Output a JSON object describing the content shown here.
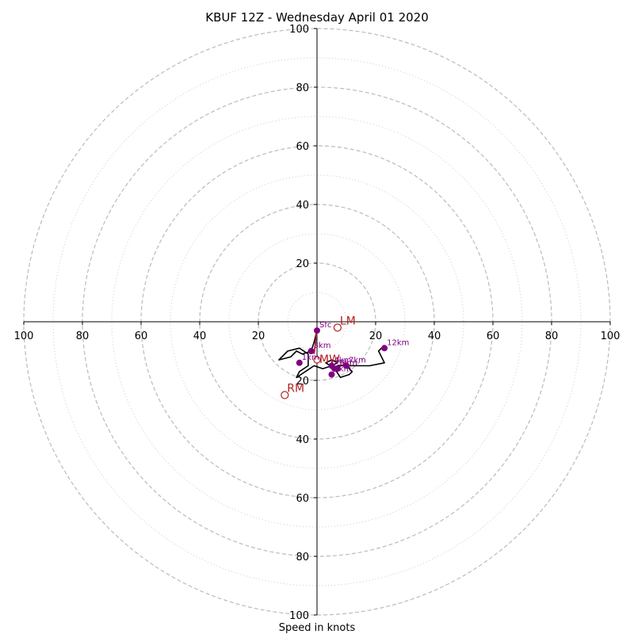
{
  "chart_data": {
    "type": "hodograph",
    "title": "KBUF 12Z - Wednesday April 01 2020",
    "xlabel": "Speed in knots",
    "range": [
      -100,
      100
    ],
    "major_rings": [
      20,
      40,
      60,
      80,
      100
    ],
    "minor_rings": [
      10,
      30,
      50,
      70,
      90
    ],
    "x_ticks": [
      {
        "v": -100,
        "label": "100"
      },
      {
        "v": -80,
        "label": "80"
      },
      {
        "v": -60,
        "label": "60"
      },
      {
        "v": -40,
        "label": "40"
      },
      {
        "v": -20,
        "label": "20"
      },
      {
        "v": 20,
        "label": "20"
      },
      {
        "v": 40,
        "label": "40"
      },
      {
        "v": 60,
        "label": "60"
      },
      {
        "v": 80,
        "label": "80"
      },
      {
        "v": 100,
        "label": "100"
      }
    ],
    "y_ticks": [
      {
        "v": 100,
        "label": "100"
      },
      {
        "v": 80,
        "label": "80"
      },
      {
        "v": 60,
        "label": "60"
      },
      {
        "v": 40,
        "label": "40"
      },
      {
        "v": 20,
        "label": "20"
      },
      {
        "v": -20,
        "label": "20"
      },
      {
        "v": -40,
        "label": "40"
      },
      {
        "v": -60,
        "label": "60"
      },
      {
        "v": -80,
        "label": "80"
      },
      {
        "v": -100,
        "label": "100"
      }
    ],
    "trace": [
      [
        0,
        -3
      ],
      [
        -1,
        -7
      ],
      [
        -2,
        -10
      ],
      [
        -5,
        -11
      ],
      [
        -7,
        -10
      ],
      [
        -9,
        -12
      ],
      [
        -13,
        -13
      ],
      [
        -10,
        -10
      ],
      [
        -6,
        -9
      ],
      [
        -3,
        -11
      ],
      [
        -3,
        -15
      ],
      [
        -6,
        -17
      ],
      [
        -7,
        -19
      ],
      [
        -4,
        -17
      ],
      [
        -1,
        -15
      ],
      [
        2,
        -16
      ],
      [
        5,
        -15
      ],
      [
        7,
        -14
      ],
      [
        5,
        -13
      ],
      [
        3,
        -14
      ],
      [
        6,
        -16
      ],
      [
        8,
        -19
      ],
      [
        11,
        -18
      ],
      [
        12,
        -17
      ],
      [
        10,
        -15
      ],
      [
        7,
        -15
      ],
      [
        5,
        -16
      ],
      [
        7,
        -15
      ],
      [
        12,
        -15
      ],
      [
        18,
        -15
      ],
      [
        23,
        -14
      ],
      [
        21,
        -10
      ],
      [
        23,
        -8
      ]
    ],
    "heights": [
      {
        "label": "Sfc",
        "u": 0,
        "v": -3
      },
      {
        "label": "1km",
        "u": -6,
        "v": -14
      },
      {
        "label": "3km",
        "u": -2,
        "v": -10
      },
      {
        "label": "4km",
        "u": 5,
        "v": -15
      },
      {
        "label": "5km",
        "u": 6,
        "v": -16
      },
      {
        "label": "6km",
        "u": 7,
        "v": -16
      },
      {
        "label": "7km",
        "u": 10,
        "v": -15
      },
      {
        "label": "8km",
        "u": 5,
        "v": -18
      },
      {
        "label": "12km",
        "u": 23,
        "v": -9
      }
    ],
    "mean_wind": {
      "label": "MW",
      "u": 0,
      "v": -13
    },
    "motions": [
      {
        "label": "LM",
        "u": 7,
        "v": -2
      },
      {
        "label": "RM",
        "u": -11,
        "v": -25
      }
    ],
    "storm_vector": {
      "from": [
        0,
        -3
      ],
      "to": [
        -1,
        -11
      ]
    },
    "colors": {
      "trace": "#000000",
      "height_marker": "#800080",
      "motion": "#b22222",
      "major_ring": "#bbbbbb",
      "minor_ring": "#cccccc"
    }
  }
}
